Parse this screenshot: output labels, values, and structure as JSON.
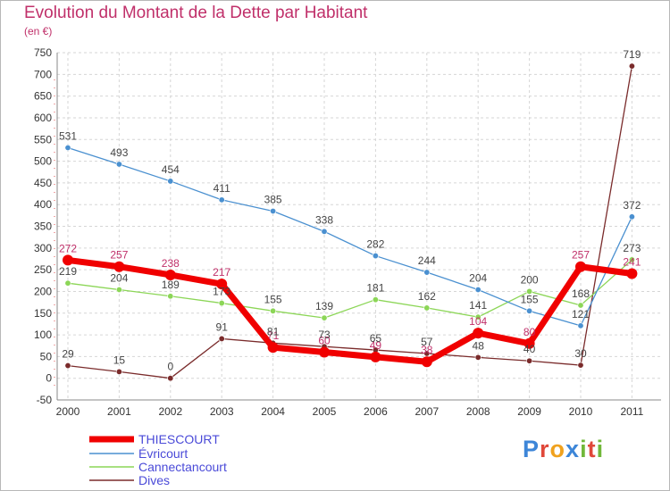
{
  "title": "Evolution du Montant de la Dette par Habitant",
  "subtitle": "(en €)",
  "logo": {
    "text": "Proxiti",
    "letters": [
      {
        "ch": "P",
        "color": "#3d86d8"
      },
      {
        "ch": "r",
        "color": "#e0483a"
      },
      {
        "ch": "o",
        "color": "#f0a21e"
      },
      {
        "ch": "x",
        "color": "#3d86d8"
      },
      {
        "ch": "i",
        "color": "#71b83a"
      },
      {
        "ch": "t",
        "color": "#e0483a"
      },
      {
        "ch": "i",
        "color": "#71b83a"
      }
    ]
  },
  "chart_data": {
    "type": "line",
    "title": "Evolution du Montant de la Dette par Habitant",
    "ylabel": "(en €)",
    "x": [
      "2000",
      "2001",
      "2002",
      "2003",
      "2004",
      "2005",
      "2006",
      "2007",
      "2008",
      "2009",
      "2010",
      "2011"
    ],
    "ylim": [
      -50,
      750
    ],
    "yticks": [
      -50,
      0,
      50,
      100,
      150,
      200,
      250,
      300,
      350,
      400,
      450,
      500,
      550,
      600,
      650,
      700,
      750
    ],
    "grid": true,
    "legend_position": "bottom-left",
    "series": [
      {
        "name": "THIESCOURT",
        "color": "#f00000",
        "width": 7,
        "marker": 6,
        "values": [
          272,
          257,
          238,
          217,
          71,
          60,
          49,
          38,
          104,
          80,
          257,
          241
        ],
        "labels": [
          "272",
          "257",
          "238",
          "217",
          "71",
          "60",
          "49",
          "38",
          "104",
          "80",
          "257",
          "241"
        ]
      },
      {
        "name": "Évricourt",
        "color": "#4a90d0",
        "width": 1.3,
        "marker": 3.2,
        "values": [
          531,
          493,
          454,
          411,
          385,
          338,
          282,
          244,
          204,
          155,
          121,
          372
        ],
        "labels": [
          "531",
          "493",
          "454",
          "411",
          "385",
          "338",
          "282",
          "244",
          "204",
          "155",
          "121",
          "372"
        ]
      },
      {
        "name": "Cannectancourt",
        "color": "#8cd657",
        "width": 1.3,
        "marker": 3.2,
        "values": [
          219,
          204,
          189,
          173,
          155,
          139,
          181,
          162,
          141,
          200,
          168,
          273
        ],
        "labels": [
          "219",
          "204",
          "189",
          "173",
          "155",
          "139",
          "181",
          "162",
          "141",
          "200",
          "168",
          "273"
        ]
      },
      {
        "name": "Dives",
        "color": "#7a2b2b",
        "width": 1.3,
        "marker": 3.2,
        "values": [
          29,
          15,
          0,
          91,
          81,
          73,
          65,
          57,
          48,
          40,
          30,
          719
        ],
        "labels": [
          "29",
          "15",
          "0",
          "91",
          "81",
          "73",
          "65",
          "57",
          "48",
          "40",
          "30",
          "719"
        ]
      }
    ]
  }
}
